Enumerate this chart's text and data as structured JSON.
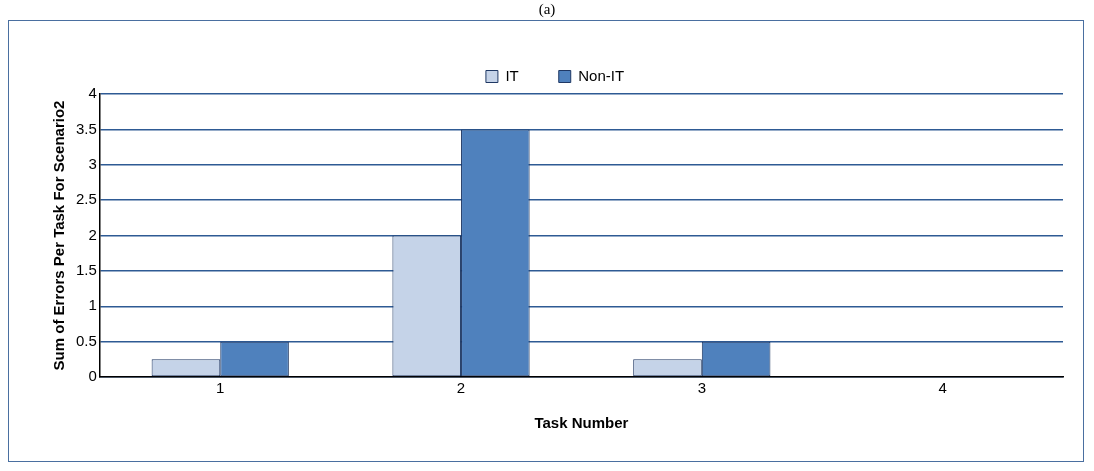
{
  "chart_data": {
    "type": "bar",
    "title": "(a)",
    "xlabel": "Task Number",
    "ylabel": "Sum of Errors Per Task For Scenario2",
    "categories": [
      "1",
      "2",
      "3",
      "4"
    ],
    "series": [
      {
        "name": "IT",
        "color": "#c5d3e8",
        "values": [
          0.25,
          2,
          0.25,
          0
        ]
      },
      {
        "name": "Non-IT",
        "color": "#4f81bd",
        "values": [
          0.5,
          3.5,
          0.5,
          0
        ]
      }
    ],
    "ylim": [
      0,
      4
    ],
    "yticks": [
      0,
      0.5,
      1,
      1.5,
      2,
      2.5,
      3,
      3.5,
      4
    ],
    "grid": "y",
    "legend": "top"
  }
}
